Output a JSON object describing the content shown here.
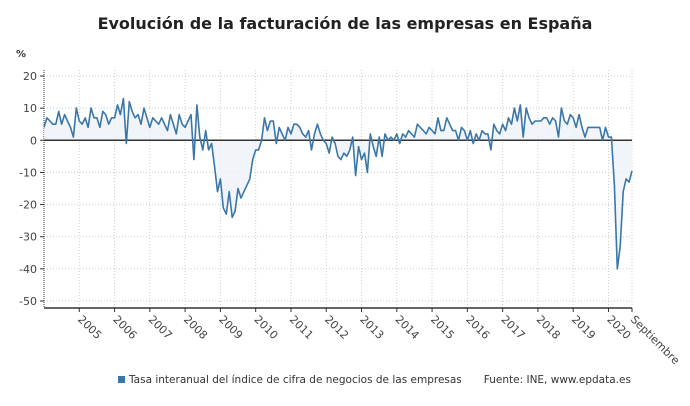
{
  "chart_data": {
    "type": "area",
    "title": "Evolución de la facturación de las empresas en España",
    "ylabel": "%",
    "xlabel": "",
    "ylim": [
      -50,
      20
    ],
    "yticks": [
      20,
      10,
      0,
      -10,
      -20,
      -30,
      -40,
      -50
    ],
    "xticks": [
      "2005",
      "2006",
      "2007",
      "2008",
      "2009",
      "2010",
      "2011",
      "2012",
      "2013",
      "2014",
      "2015",
      "2016",
      "2017",
      "2018",
      "2019",
      "2020",
      "Septiembre"
    ],
    "x_start": "2004-01",
    "x_end": "2020-09",
    "frequency": "monthly",
    "grid": true,
    "legend_position": "bottom",
    "series": [
      {
        "name": "Tasa interanual del índice de cifra de negocios de las empresas",
        "color": "#3a77a8",
        "values": [
          4,
          7,
          6,
          5,
          5,
          9,
          5,
          8,
          6,
          4,
          1,
          10,
          6,
          5,
          7,
          4,
          10,
          7,
          7,
          4,
          9,
          8,
          5,
          7,
          7,
          11,
          8,
          13,
          -1,
          12,
          9,
          7,
          8,
          5,
          10,
          7,
          4,
          7,
          6,
          5,
          7,
          5,
          3,
          8,
          5,
          2,
          8,
          5,
          4,
          6,
          8,
          -6,
          11,
          1,
          -3,
          3,
          -3,
          -1,
          -8,
          -16,
          -12,
          -21,
          -23,
          -16,
          -24,
          -22,
          -15,
          -18,
          -16,
          -14,
          -12,
          -6,
          -3,
          -3,
          0,
          7,
          3,
          6,
          6,
          -1,
          4,
          2,
          0,
          4,
          2,
          5,
          5,
          4,
          2,
          1,
          3,
          -3,
          2,
          5,
          2,
          0,
          -1,
          -4,
          1,
          -1,
          -5,
          -6,
          -4,
          -5,
          -3,
          1,
          -11,
          -2,
          -6,
          -4,
          -10,
          2,
          -2,
          -5,
          1,
          -5,
          2,
          0,
          1,
          0,
          2,
          -1,
          2,
          1,
          3,
          2,
          1,
          5,
          4,
          3,
          2,
          4,
          3,
          2,
          7,
          3,
          3,
          7,
          5,
          3,
          3,
          0,
          4,
          3,
          0,
          3,
          -1,
          2,
          0,
          3,
          2,
          2,
          -3,
          5,
          3,
          2,
          5,
          3,
          7,
          5,
          10,
          6,
          11,
          1,
          10,
          7,
          5,
          6,
          6,
          6,
          7,
          7,
          5,
          7,
          6,
          1,
          10,
          6,
          5,
          8,
          7,
          4,
          8,
          4,
          1,
          4,
          4,
          4,
          4,
          4,
          0,
          4,
          1,
          1,
          -14,
          -40,
          -33,
          -16,
          -12,
          -13,
          -9.5
        ]
      }
    ]
  },
  "legend": {
    "label": "Tasa interanual del índice de cifra de negocios de las empresas"
  },
  "source": "Fuente: INE, www.epdata.es"
}
